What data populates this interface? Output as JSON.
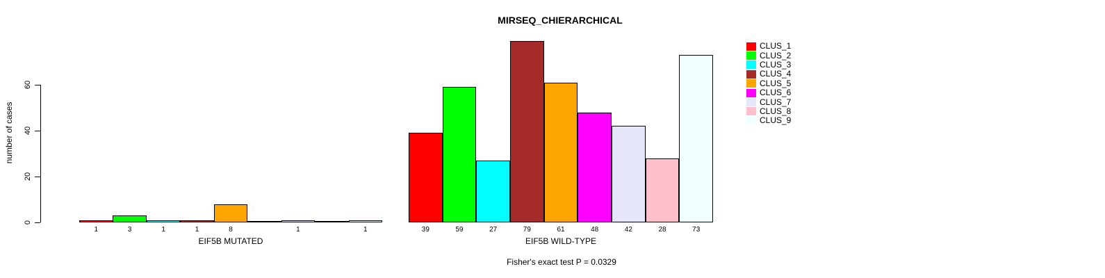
{
  "title": "MIRSEQ_CHIERARCHICAL",
  "caption": "Fisher's exact test P = 0.0329",
  "chart_data": {
    "type": "bar",
    "title": "MIRSEQ_CHIERARCHICAL",
    "ylabel": "number of cases",
    "xlabel": "",
    "y_ticks": [
      0,
      20,
      40,
      60
    ],
    "ylim": [
      0,
      79
    ],
    "grid": false,
    "legend_position": "right",
    "categories": [
      "CLUS_1",
      "CLUS_2",
      "CLUS_3",
      "CLUS_4",
      "CLUS_5",
      "CLUS_6",
      "CLUS_7",
      "CLUS_8",
      "CLUS_9"
    ],
    "colors": [
      "#FF0000",
      "#00FF00",
      "#00FFFF",
      "#A52A2A",
      "#FFA500",
      "#FF00FF",
      "#E6E6FA",
      "#FFC0CB",
      "#F0FFFF"
    ],
    "series": [
      {
        "name": "EIF5B MUTATED",
        "values": [
          1,
          3,
          1,
          1,
          8,
          0,
          1,
          0,
          1
        ]
      },
      {
        "name": "EIF5B WILD-TYPE",
        "values": [
          39,
          59,
          27,
          79,
          61,
          48,
          42,
          28,
          73
        ]
      }
    ],
    "annotation": "Fisher's exact test P = 0.0329"
  }
}
